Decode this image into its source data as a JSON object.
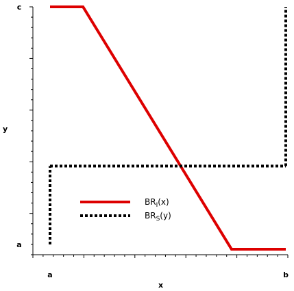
{
  "chart_data": {
    "type": "line",
    "xlabel": "x",
    "ylabel": "y",
    "x_ticks": [
      {
        "value": 0,
        "label": "a"
      },
      {
        "value": 1,
        "label": "b"
      }
    ],
    "y_ticks": [
      {
        "value": 0,
        "label": "a"
      },
      {
        "value": 1,
        "label": "c"
      }
    ],
    "xlim": [
      -0.075,
      1.0
    ],
    "ylim": [
      -0.04,
      1.0
    ],
    "legend_position": "lower-left",
    "series": [
      {
        "name": "BR_I(x)",
        "label_main": "BR",
        "label_sub": "I",
        "label_tail": "(x)",
        "style": "solid",
        "color": "#dd0000",
        "x": [
          0.0,
          0.14,
          0.77,
          1.0
        ],
        "y": [
          1.0,
          1.0,
          -0.02,
          -0.02
        ]
      },
      {
        "name": "BR_S(y)",
        "label_main": "BR",
        "label_sub": "S",
        "label_tail": "(y)",
        "style": "dotted",
        "color": "#000000",
        "segments": [
          {
            "x": [
              0.0,
              0.0
            ],
            "y": [
              0.0,
              0.33
            ]
          },
          {
            "x": [
              0.0,
              1.0
            ],
            "y": [
              0.33,
              0.33
            ]
          },
          {
            "x": [
              1.0,
              1.0
            ],
            "y": [
              0.33,
              1.0
            ]
          }
        ]
      }
    ]
  }
}
